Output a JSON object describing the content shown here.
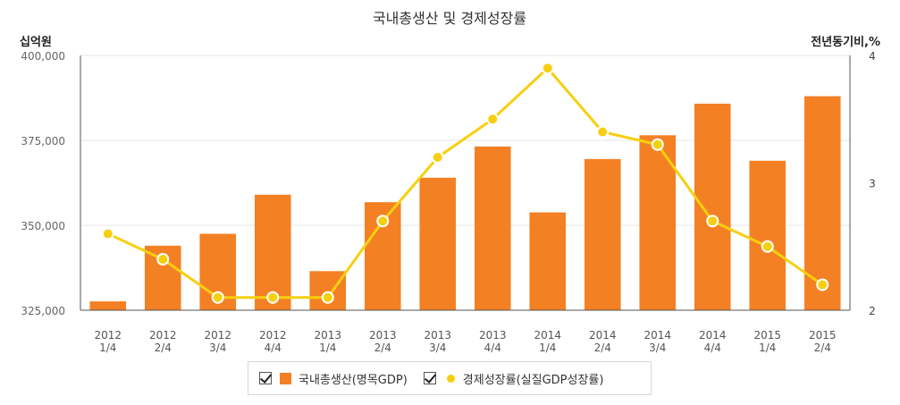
{
  "chart_data": {
    "type": "bar+line",
    "title": "국내총생산 및 경제성장률",
    "left_axis_label": "십억원",
    "right_axis_label": "전년동기비,%",
    "categories": [
      [
        "2012",
        "1/4"
      ],
      [
        "2012",
        "2/4"
      ],
      [
        "2012",
        "3/4"
      ],
      [
        "2012",
        "4/4"
      ],
      [
        "2013",
        "1/4"
      ],
      [
        "2013",
        "2/4"
      ],
      [
        "2013",
        "3/4"
      ],
      [
        "2013",
        "4/4"
      ],
      [
        "2014",
        "1/4"
      ],
      [
        "2014",
        "2/4"
      ],
      [
        "2014",
        "3/4"
      ],
      [
        "2014",
        "4/4"
      ],
      [
        "2015",
        "1/4"
      ],
      [
        "2015",
        "2/4"
      ]
    ],
    "left_axis": {
      "min": 325000,
      "max": 400000,
      "ticks": [
        325000,
        350000,
        375000,
        400000
      ],
      "tick_labels": [
        "325,000",
        "350,000",
        "375,000",
        "400,000"
      ]
    },
    "right_axis": {
      "min": 2,
      "max": 4,
      "ticks": [
        2,
        3,
        4
      ],
      "tick_labels": [
        "2",
        "3",
        "4"
      ]
    },
    "series": [
      {
        "name": "국내총생산(명목GDP)",
        "kind": "bar",
        "axis": "left",
        "color": "#F48024",
        "values": [
          327600,
          344000,
          347500,
          359000,
          336500,
          356800,
          364000,
          373200,
          353800,
          369500,
          376500,
          385800,
          369000,
          388000
        ]
      },
      {
        "name": "경제성장률(실질GDP성장률)",
        "kind": "line",
        "axis": "right",
        "color": "#F8CF10",
        "values": [
          2.6,
          2.4,
          2.1,
          2.1,
          2.1,
          2.7,
          3.2,
          3.5,
          3.9,
          3.4,
          3.3,
          2.7,
          2.5,
          2.2
        ]
      }
    ],
    "grid": true,
    "legend_position": "bottom-center"
  }
}
